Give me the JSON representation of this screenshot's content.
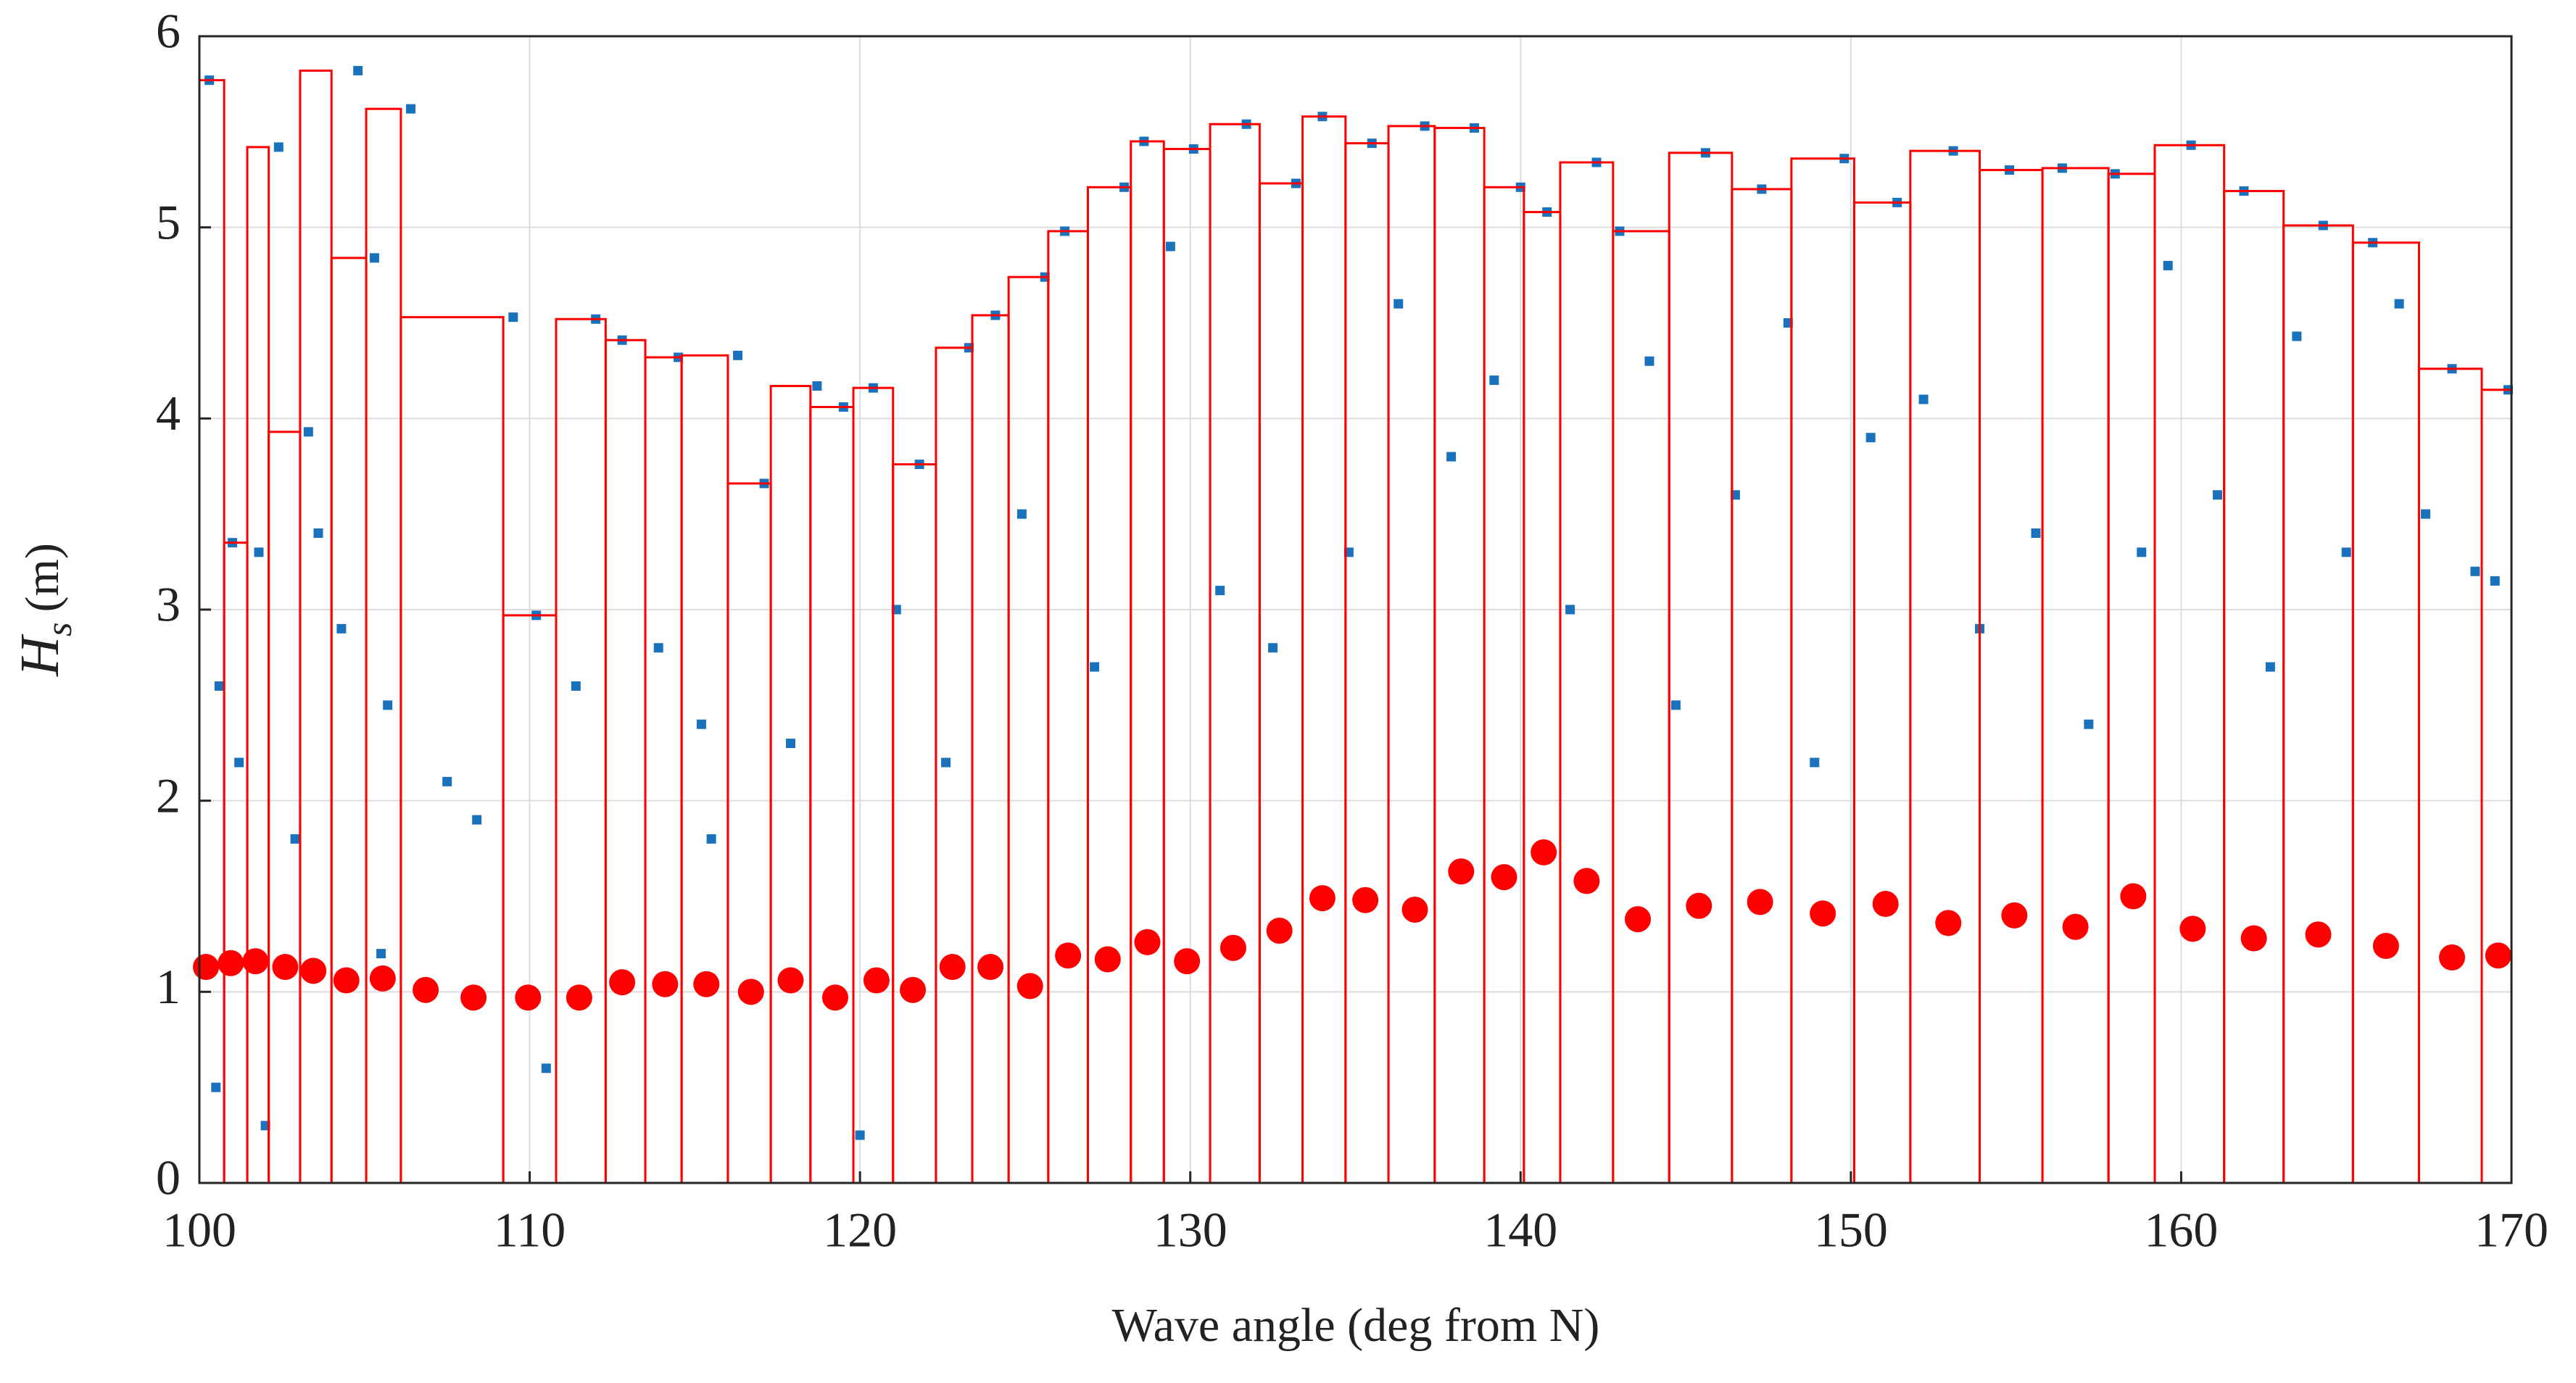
{
  "chart_data": {
    "type": "scatter",
    "xlabel": "Wave angle (deg from N)",
    "ylabel": {
      "symbol": "H",
      "subscript": "s",
      "unit": "(m)"
    },
    "xlim": [
      100,
      170
    ],
    "ylim": [
      0,
      6
    ],
    "xticks": [
      100,
      110,
      120,
      130,
      140,
      150,
      160,
      170
    ],
    "yticks": [
      0,
      1,
      2,
      3,
      4,
      5,
      6
    ],
    "grid": true,
    "series": [
      {
        "color": "#1a72bd",
        "x": [
          100.3,
          100.6,
          101.0,
          101.2,
          101.8,
          102.4,
          102.9,
          103.3,
          103.6,
          104.3,
          104.8,
          105.3,
          105.7,
          106.4,
          107.5,
          108.4,
          109.5,
          110.2,
          111.4,
          112.0,
          112.8,
          113.9,
          114.5,
          115.2,
          116.3,
          117.1,
          117.9,
          118.7,
          119.5,
          120.4,
          121.1,
          121.8,
          122.6,
          123.3,
          124.1,
          124.9,
          125.6,
          126.2,
          127.1,
          128.0,
          128.6,
          129.4,
          130.1,
          130.9,
          131.7,
          132.5,
          133.2,
          134.0,
          134.8,
          135.5,
          136.3,
          137.1,
          137.9,
          138.6,
          139.2,
          140.0,
          140.8,
          141.5,
          142.3,
          143.0,
          143.9,
          144.7,
          145.6,
          146.5,
          147.3,
          148.1,
          148.9,
          149.8,
          150.6,
          151.4,
          152.2,
          153.1,
          153.9,
          154.8,
          155.6,
          156.4,
          157.2,
          158.0,
          158.8,
          159.6,
          160.3,
          161.1,
          161.9,
          162.7,
          163.5,
          164.3,
          165.0,
          165.8,
          166.6,
          167.4,
          168.2,
          168.9,
          169.5,
          169.9,
          100.5,
          102.0,
          105.5,
          110.5,
          115.5,
          120.0
        ],
        "values": [
          5.77,
          2.6,
          3.35,
          2.2,
          3.3,
          5.42,
          1.8,
          3.93,
          3.4,
          2.9,
          5.82,
          4.84,
          2.5,
          5.62,
          2.1,
          1.9,
          4.53,
          2.97,
          2.6,
          4.52,
          4.41,
          2.8,
          4.32,
          2.4,
          4.33,
          3.66,
          2.3,
          4.17,
          4.06,
          4.16,
          3.0,
          3.76,
          2.2,
          4.37,
          4.54,
          3.5,
          4.74,
          4.98,
          2.7,
          5.21,
          5.45,
          4.9,
          5.41,
          3.1,
          5.54,
          2.8,
          5.23,
          5.58,
          3.3,
          5.44,
          4.6,
          5.53,
          3.8,
          5.52,
          4.2,
          5.21,
          5.08,
          3.0,
          5.34,
          4.98,
          4.3,
          2.5,
          5.39,
          3.6,
          5.2,
          4.5,
          2.2,
          5.36,
          3.9,
          5.13,
          4.1,
          5.4,
          2.9,
          5.3,
          3.4,
          5.31,
          2.4,
          5.28,
          3.3,
          4.8,
          5.43,
          3.6,
          5.19,
          2.7,
          4.43,
          5.01,
          3.3,
          4.92,
          4.6,
          3.5,
          4.26,
          3.2,
          3.15,
          4.15,
          0.5,
          0.3,
          1.2,
          0.6,
          1.8,
          0.25
        ]
      }
    ],
    "bins": {
      "color": "#ff0000",
      "edges": [
        100,
        100.75,
        101.45,
        102.1,
        103.05,
        104.0,
        105.05,
        106.1,
        109.2,
        110.8,
        112.3,
        113.5,
        114.6,
        116.0,
        117.3,
        118.5,
        119.8,
        121.0,
        122.3,
        123.4,
        124.5,
        125.7,
        126.9,
        128.2,
        129.2,
        130.6,
        132.1,
        133.4,
        134.7,
        136.0,
        137.4,
        138.9,
        140.1,
        141.2,
        142.8,
        144.5,
        146.4,
        148.2,
        150.1,
        151.8,
        153.9,
        155.8,
        157.8,
        159.2,
        161.3,
        163.1,
        165.2,
        167.2,
        169.1,
        170
      ],
      "values": [
        5.77,
        3.35,
        5.42,
        3.93,
        5.82,
        4.84,
        5.62,
        4.53,
        2.97,
        4.52,
        4.41,
        4.32,
        4.33,
        3.66,
        4.17,
        4.06,
        4.16,
        3.76,
        4.37,
        4.54,
        4.74,
        4.98,
        5.21,
        5.45,
        5.41,
        5.54,
        5.23,
        5.58,
        5.44,
        5.53,
        5.52,
        5.21,
        5.08,
        5.34,
        4.98,
        5.39,
        5.2,
        5.36,
        5.13,
        5.4,
        5.3,
        5.31,
        5.28,
        5.43,
        5.19,
        5.01,
        4.92,
        4.26,
        4.15
      ]
    },
    "means": {
      "color": "#ff0000",
      "x": [
        100.2,
        100.95,
        101.7,
        102.6,
        103.45,
        104.45,
        105.55,
        106.85,
        108.3,
        109.95,
        111.5,
        112.8,
        114.1,
        115.35,
        116.7,
        117.9,
        119.25,
        120.5,
        121.6,
        122.8,
        123.95,
        125.15,
        126.3,
        127.5,
        128.7,
        129.9,
        131.3,
        132.7,
        134.0,
        135.3,
        136.8,
        138.2,
        139.5,
        140.7,
        142.0,
        143.55,
        145.4,
        147.25,
        149.15,
        151.05,
        152.95,
        154.95,
        156.8,
        158.55,
        160.35,
        162.2,
        164.15,
        166.2,
        168.2,
        169.6
      ],
      "values": [
        1.13,
        1.15,
        1.16,
        1.13,
        1.11,
        1.06,
        1.07,
        1.01,
        0.97,
        0.97,
        0.97,
        1.05,
        1.04,
        1.04,
        1.0,
        1.06,
        0.97,
        1.06,
        1.01,
        1.13,
        1.13,
        1.03,
        1.19,
        1.17,
        1.26,
        1.16,
        1.23,
        1.32,
        1.49,
        1.48,
        1.43,
        1.63,
        1.6,
        1.73,
        1.58,
        1.38,
        1.45,
        1.47,
        1.41,
        1.46,
        1.36,
        1.4,
        1.34,
        1.5,
        1.33,
        1.28,
        1.3,
        1.24,
        1.18,
        1.19
      ]
    }
  }
}
